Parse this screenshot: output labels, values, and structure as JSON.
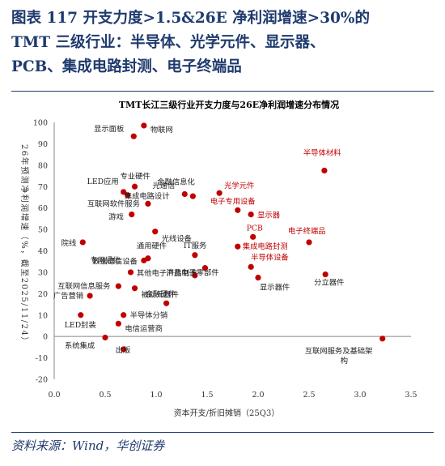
{
  "heading": {
    "line1": "图表 117   开支力度>1.5&26E 净利润增速>30%的",
    "line2": "TMT 三级行业：半导体、光学元件、显示器、",
    "line3": "PCB、集成电路封测、电子终端品"
  },
  "source": "资料来源：Wind，华创证券",
  "colors": {
    "highlight": "#c00000",
    "normal": "#222222",
    "heading": "#1f3a6e"
  },
  "chart_data": {
    "type": "scatter",
    "title": "TMT长江三级行业开支力度与26E净利润增速分布情况",
    "xlabel": "资本开支/折旧摊销（25Q3）",
    "ylabel": "26年预测净利润增速（%，截至2025/11/24）",
    "xlim": [
      0,
      3.5
    ],
    "ylim": [
      -20,
      100
    ],
    "xticks": [
      "0.0",
      "0.5",
      "1.0",
      "1.5",
      "2.0",
      "2.5",
      "3.0",
      "3.5"
    ],
    "yticks": [
      "-20",
      "-10",
      "0",
      "10",
      "20",
      "30",
      "40",
      "50",
      "60",
      "70",
      "80",
      "90",
      "100"
    ],
    "grid": false,
    "legend": "none",
    "points": [
      {
        "label": "物联网",
        "x": 0.88,
        "y": 98.5,
        "hl": false
      },
      {
        "label": "显示面板",
        "x": 0.78,
        "y": 93.5,
        "hl": false
      },
      {
        "label": "专业硬件",
        "x": 0.79,
        "y": 70,
        "hl": false
      },
      {
        "label": "LED应用",
        "x": 0.68,
        "y": 67.5,
        "hl": false
      },
      {
        "label": "金融信息化",
        "x": 1.28,
        "y": 66.5,
        "hl": false
      },
      {
        "label": "集成电路设计",
        "x": 0.72,
        "y": 66,
        "hl": false
      },
      {
        "label": "光通信",
        "x": 1.36,
        "y": 65.5,
        "hl": false
      },
      {
        "label": "互联网软件服务",
        "x": 0.92,
        "y": 62,
        "hl": false
      },
      {
        "label": "游戏",
        "x": 0.76,
        "y": 57,
        "hl": false
      },
      {
        "label": "光线设备",
        "x": 0.99,
        "y": 49,
        "hl": false
      },
      {
        "label": "院线",
        "x": 0.28,
        "y": 44,
        "hl": false
      },
      {
        "label": "IT服务",
        "x": 1.38,
        "y": 38,
        "hl": false
      },
      {
        "label": "通用硬件",
        "x": 0.92,
        "y": 36.5,
        "hl": false
      },
      {
        "label": "数据通信设备",
        "x": 0.88,
        "y": 35.5,
        "hl": false
      },
      {
        "label": "消费电子零部件",
        "x": 1.48,
        "y": 32,
        "hl": false
      },
      {
        "label": "专网通信",
        "x": 0.75,
        "y": 30,
        "hl": false
      },
      {
        "label": "其他电子产品制造",
        "x": 1.38,
        "y": 28.5,
        "hl": false
      },
      {
        "label": "互联网信息服务",
        "x": 0.63,
        "y": 23.5,
        "hl": false
      },
      {
        "label": "被动元器件",
        "x": 0.79,
        "y": 22.5,
        "hl": false
      },
      {
        "label": "广告营销",
        "x": 0.35,
        "y": 19,
        "hl": false
      },
      {
        "label": "金融硬件",
        "x": 1.1,
        "y": 15.5,
        "hl": false
      },
      {
        "label": "半导体分销",
        "x": 0.68,
        "y": 10,
        "hl": false
      },
      {
        "label": "LED封装",
        "x": 0.26,
        "y": 10,
        "hl": false
      },
      {
        "label": "电信运营商",
        "x": 0.63,
        "y": 6,
        "hl": false
      },
      {
        "label": "系统集成",
        "x": 0.5,
        "y": -0.5,
        "hl": false
      },
      {
        "label": "出版",
        "x": 0.68,
        "y": -6,
        "hl": false
      },
      {
        "label": "显示器件",
        "x": 2.0,
        "y": 27.5,
        "hl": false
      },
      {
        "label": "分立器件",
        "x": 2.66,
        "y": 29,
        "hl": false
      },
      {
        "label": "互联网服务及基础架构",
        "x": 3.22,
        "y": -1,
        "hl": false
      },
      {
        "label": "半导体材料",
        "x": 2.65,
        "y": 77.5,
        "hl": true
      },
      {
        "label": "光学元件",
        "x": 1.62,
        "y": 67,
        "hl": true
      },
      {
        "label": "电子专用设备",
        "x": 1.8,
        "y": 59,
        "hl": true
      },
      {
        "label": "显示器",
        "x": 1.93,
        "y": 57,
        "hl": true
      },
      {
        "label": "PCB",
        "x": 1.95,
        "y": 46.5,
        "hl": true
      },
      {
        "label": "电子终端品",
        "x": 2.5,
        "y": 44,
        "hl": true
      },
      {
        "label": "集成电路封测",
        "x": 1.8,
        "y": 42,
        "hl": true
      },
      {
        "label": "半导体设备",
        "x": 1.93,
        "y": 32.5,
        "hl": true
      }
    ]
  }
}
